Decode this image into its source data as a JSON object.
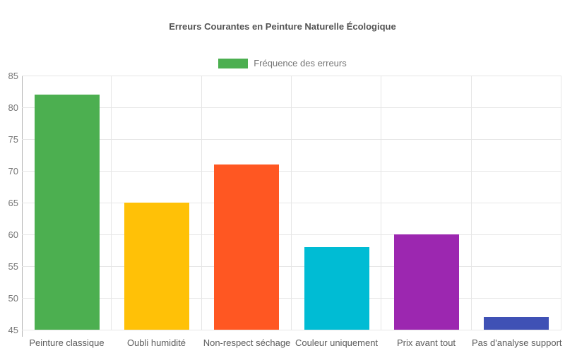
{
  "chart_data": {
    "type": "bar",
    "title": "Erreurs Courantes en Peinture Naturelle Écologique",
    "legend": {
      "label": "Fréquence des erreurs",
      "swatch_color": "#4caf50",
      "position": "top-center"
    },
    "categories": [
      "Peinture classique",
      "Oubli humidité",
      "Non-respect séchage",
      "Couleur uniquement",
      "Prix avant tout",
      "Pas d'analyse support"
    ],
    "series": [
      {
        "name": "Fréquence des erreurs",
        "values": [
          82,
          65,
          71,
          58,
          60,
          47
        ]
      }
    ],
    "bar_colors": [
      "#4caf50",
      "#ffc107",
      "#ff5722",
      "#00bcd4",
      "#9c27b0",
      "#3f51b5"
    ],
    "xlabel": "",
    "ylabel": "",
    "ylim": [
      45,
      85
    ],
    "yticks": [
      45,
      50,
      55,
      60,
      65,
      70,
      75,
      80,
      85
    ],
    "grid": true,
    "background": "#ffffff",
    "text_colors": {
      "title": "#545454",
      "legend": "#757575",
      "yticks": "#757575",
      "xlabels": "#5c5c5c"
    },
    "gridline_color": "#e6e6e6",
    "axis_line_color": "#b3b3b3"
  }
}
